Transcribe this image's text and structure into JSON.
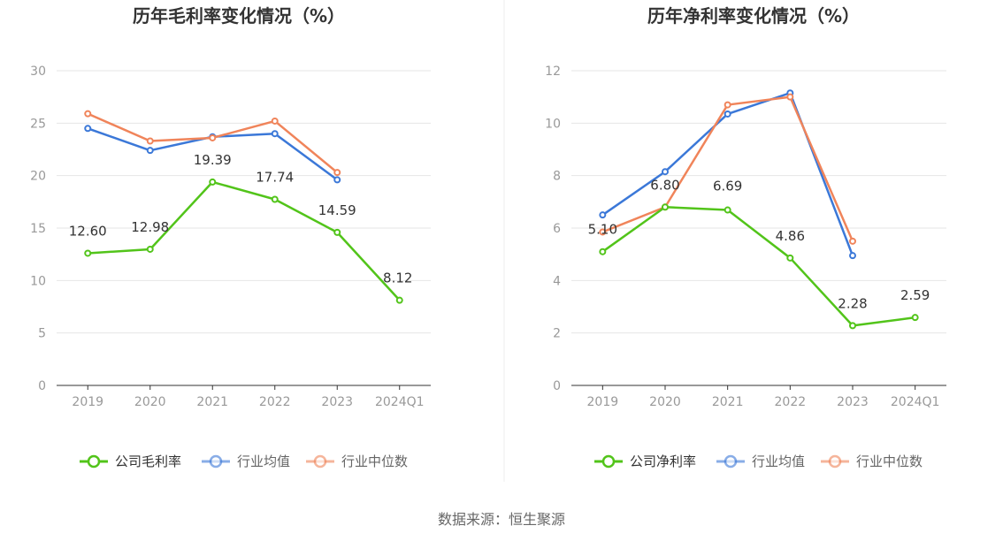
{
  "chart_data": [
    {
      "type": "line",
      "title": "历年毛利率变化情况（%）",
      "categories": [
        "2019",
        "2020",
        "2021",
        "2022",
        "2023",
        "2024Q1"
      ],
      "ylim": [
        0,
        30
      ],
      "yticks": [
        "0",
        "5",
        "10",
        "15",
        "20",
        "25",
        "30"
      ],
      "grid": true,
      "legend_position": "bottom",
      "series": [
        {
          "name": "公司毛利率",
          "color": "#52c41a",
          "values": [
            12.6,
            12.98,
            19.39,
            17.74,
            14.59,
            8.12
          ],
          "labels": [
            "12.60",
            "12.98",
            "19.39",
            "17.74",
            "14.59",
            "8.12"
          ]
        },
        {
          "name": "行业均值",
          "color": "#3b78d8",
          "values": [
            24.5,
            22.4,
            23.7,
            24.0,
            19.6,
            null
          ]
        },
        {
          "name": "行业中位数",
          "color": "#f0845a",
          "values": [
            25.9,
            23.3,
            23.6,
            25.2,
            20.3,
            null
          ]
        }
      ]
    },
    {
      "type": "line",
      "title": "历年净利率变化情况（%）",
      "categories": [
        "2019",
        "2020",
        "2021",
        "2022",
        "2023",
        "2024Q1"
      ],
      "ylim": [
        0,
        12
      ],
      "yticks": [
        "0",
        "2",
        "4",
        "6",
        "8",
        "10",
        "12"
      ],
      "grid": true,
      "legend_position": "bottom",
      "series": [
        {
          "name": "公司净利率",
          "color": "#52c41a",
          "values": [
            5.1,
            6.8,
            6.69,
            4.86,
            2.28,
            2.59
          ],
          "labels": [
            "5.10",
            "6.80",
            "6.69",
            "4.86",
            "2.28",
            "2.59"
          ]
        },
        {
          "name": "行业均值",
          "color": "#3b78d8",
          "values": [
            6.5,
            8.15,
            10.35,
            11.15,
            4.95,
            null
          ]
        },
        {
          "name": "行业中位数",
          "color": "#f0845a",
          "values": [
            5.85,
            6.8,
            10.7,
            11.0,
            5.5,
            null
          ]
        }
      ]
    }
  ],
  "footer": {
    "source": "数据来源：恒生聚源"
  }
}
